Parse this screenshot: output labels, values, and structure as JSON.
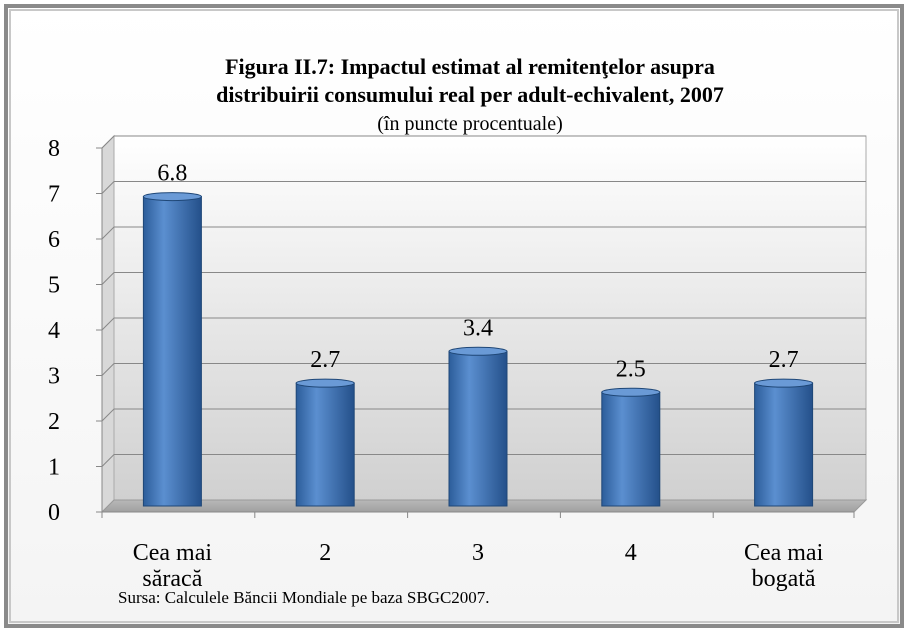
{
  "chart_data": {
    "type": "bar",
    "title": [
      "Figura II.7:  Impactul estimat al remitenţelor asupra",
      "distribuirii consumului real per adult-echivalent, 2007"
    ],
    "subtitle": "(în puncte procentuale)",
    "categories": [
      "Cea mai săracă",
      "2",
      "3",
      "4",
      "Cea mai bogată"
    ],
    "values": [
      6.8,
      2.7,
      3.4,
      2.5,
      2.7
    ],
    "color": "#4a7ebb",
    "ylim": [
      0,
      8
    ],
    "yticks": [
      0,
      1,
      2,
      3,
      4,
      5,
      6,
      7,
      8
    ],
    "grid": true,
    "note": "Sursa: Calculele Băncii Mondiale pe baza SBGC2007."
  }
}
